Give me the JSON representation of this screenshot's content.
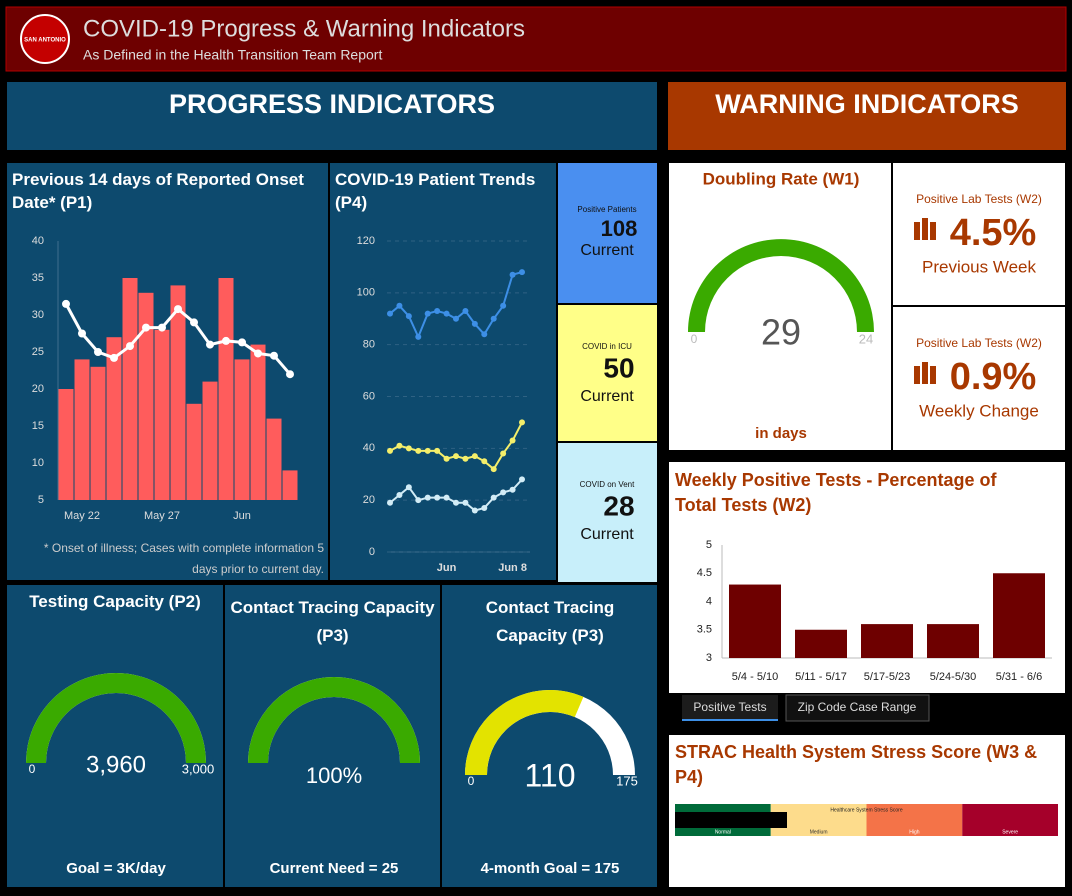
{
  "header": {
    "logo_text": "SAN ANTONIO",
    "title": "COVID-19 Progress & Warning Indicators",
    "subtitle": "As Defined in the Health Transition Team Report"
  },
  "progress": {
    "heading": "PROGRESS INDICATORS"
  },
  "warning": {
    "heading": "WARNING INDICATORS"
  },
  "chart_data": [
    {
      "type": "bar",
      "title": "Previous 14 days of Reported Onset Date* (P1)",
      "categories": [
        null,
        "May 22",
        null,
        null,
        null,
        null,
        "May 27",
        null,
        null,
        null,
        null,
        "Jun",
        null,
        null,
        null
      ],
      "series": [
        {
          "type": "bar",
          "color": "#ff5c5c",
          "values": [
            20,
            24,
            23,
            27,
            35,
            33,
            28,
            34,
            18,
            21,
            35,
            24,
            26,
            16,
            9
          ]
        },
        {
          "type": "line",
          "color": "#ffffff",
          "values": [
            31.5,
            27.5,
            25,
            24.2,
            25.8,
            28.3,
            28.3,
            30.8,
            29,
            26,
            26.5,
            26.3,
            24.8,
            24.5,
            22
          ]
        }
      ],
      "ylim": [
        5,
        40
      ],
      "yticks": [
        5,
        10,
        15,
        20,
        25,
        30,
        35,
        40
      ],
      "grid": false,
      "note": "* Onset of illness; Cases with complete information 5 days prior to current day."
    },
    {
      "type": "line",
      "title": "COVID-19 Patient Trends (P4)",
      "categories": [
        null,
        null,
        null,
        null,
        null,
        null,
        "Jun",
        null,
        null,
        null,
        null,
        null,
        null,
        "Jun 8",
        null
      ],
      "series": [
        {
          "color": "#3d8fe6",
          "values": [
            92,
            95,
            91,
            83,
            92,
            93,
            92,
            90,
            93,
            88,
            84,
            90,
            95,
            107,
            108
          ]
        },
        {
          "color": "#f4ee6a",
          "values": [
            39,
            41,
            40,
            39,
            39,
            39,
            36,
            37,
            36,
            37,
            35,
            32,
            38,
            43,
            50
          ]
        },
        {
          "color": "#d2ecf6",
          "values": [
            19,
            22,
            25,
            20,
            21,
            21,
            21,
            19,
            19,
            16,
            17,
            21,
            23,
            24,
            28
          ]
        }
      ],
      "ylim": [
        0,
        120
      ],
      "yticks": [
        0,
        20,
        40,
        60,
        80,
        100,
        120
      ],
      "grid": true
    },
    {
      "type": "bar",
      "title": "Weekly Positive Tests - Percentage of Total Tests (W2)",
      "categories": [
        "5/4 - 5/10",
        "5/11 - 5/17",
        "5/17-5/23",
        "5/24-5/30",
        "5/31 - 6/6"
      ],
      "values": [
        4.3,
        3.5,
        3.6,
        3.6,
        4.5
      ],
      "color": "#6e0000",
      "ylim": [
        3,
        5
      ],
      "yticks": [
        3,
        3.5,
        4,
        4.5,
        5
      ],
      "grid": false
    }
  ],
  "patient_tiles": [
    {
      "label": "Positive Patients",
      "value": 108,
      "caption": "Current",
      "color": "#4a8ff0"
    },
    {
      "label": "COVID in ICU",
      "value": 50,
      "caption": "Current",
      "color": "#ffff88"
    },
    {
      "label": "COVID on Vent",
      "value": 28,
      "caption": "Current",
      "color": "#c8effa"
    }
  ],
  "gauges": [
    {
      "title": "Testing Capacity (P2)",
      "min": 0,
      "max": 3000,
      "max_label": "3,000",
      "value": 3960,
      "value_label": "3,960",
      "footer": "Goal = 3K/day",
      "color": "#3aaa00"
    },
    {
      "title": "Contact Tracing Capacity (P3)",
      "value": 100,
      "value_label": "100%",
      "footer": "Current Need = 25",
      "color": "#3aaa00"
    },
    {
      "title": "Contact Tracing Capacity (P3)",
      "min": 0,
      "max": 175,
      "value": 110,
      "footer": "4-month Goal = 175",
      "color": "#e3e300"
    }
  ],
  "doubling": {
    "title": "Doubling Rate (W1)",
    "min": 0,
    "max": 24,
    "value": 29,
    "caption": "in days",
    "color": "#3aaa00"
  },
  "lab_tiles": [
    {
      "label": "Positive Lab Tests (W2)",
      "value": "4.5%",
      "caption": "Previous Week"
    },
    {
      "label": "Positive Lab Tests (W2)",
      "value": "0.9%",
      "caption": "Weekly Change"
    }
  ],
  "tabs": [
    "Positive Tests",
    "Zip Code Case Range"
  ],
  "stress": {
    "title": "STRAC Health System Stress Score (W3 & P4)",
    "bar_title": "Healthcare System Stress Score",
    "levels": [
      {
        "label": "Normal",
        "color": "#006b3a"
      },
      {
        "label": "Medium",
        "color": "#fddc8c"
      },
      {
        "label": "High",
        "color": "#f47348"
      },
      {
        "label": "Severe",
        "color": "#a5002a"
      }
    ]
  }
}
